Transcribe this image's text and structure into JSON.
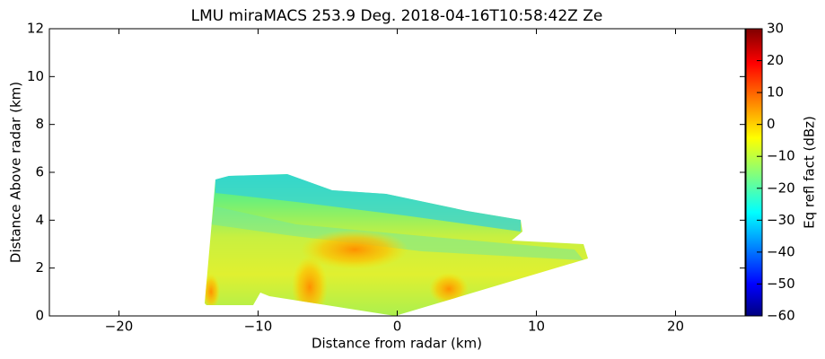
{
  "chart_data": {
    "type": "rhi",
    "title": "LMU miraMACS 253.9 Deg. 2018-04-16T10:58:42Z  Ze",
    "x_label": "Distance from radar (km)",
    "y_label": "Distance Above radar  (km)",
    "xlim": [
      -25,
      25
    ],
    "xticks": [
      {
        "value": -20,
        "label": "−20"
      },
      {
        "value": -10,
        "label": "−10"
      },
      0,
      10,
      20
    ],
    "ylim": [
      0,
      12
    ],
    "yticks": [
      0,
      2,
      4,
      6,
      8,
      10,
      12
    ],
    "colorbar": {
      "label": "Eq refl fact (dBz)",
      "lim": [
        -60,
        30
      ],
      "ticks": [
        {
          "value": -60,
          "label": "−60"
        },
        {
          "value": -50,
          "label": "−50"
        },
        {
          "value": -40,
          "label": "−40"
        },
        {
          "value": -30,
          "label": "−30"
        },
        {
          "value": -20,
          "label": "−20"
        },
        {
          "value": -10,
          "label": "−10"
        },
        0,
        10,
        20,
        30
      ]
    }
  }
}
